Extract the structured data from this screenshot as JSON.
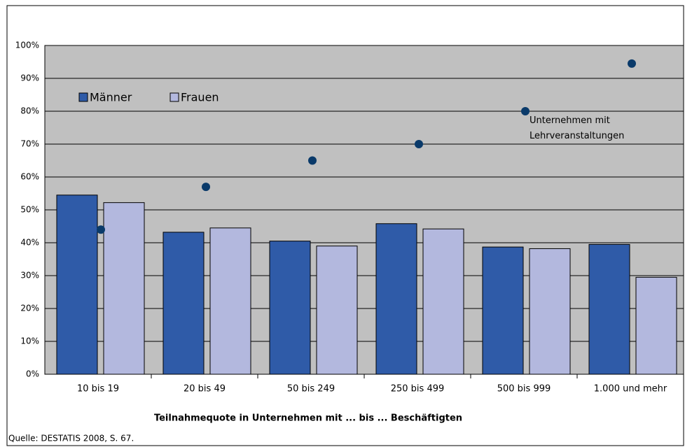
{
  "chart_data": {
    "type": "bar",
    "x_label": "Teilnahmequote in Unternehmen mit ... bis ... Beschäftigten",
    "source": "Quelle: DESTATIS 2008, S. 67.",
    "categories": [
      "10 bis 19",
      "20 bis 49",
      "50 bis 249",
      "250 bis 499",
      "500 bis 999",
      "1.000 und mehr"
    ],
    "series": [
      {
        "name": "Männer",
        "color": "#2f5ba8",
        "values": [
          54.5,
          43.2,
          40.5,
          45.8,
          38.7,
          39.5
        ]
      },
      {
        "name": "Frauen",
        "color": "#b3b8de",
        "values": [
          52.2,
          44.5,
          39,
          44.2,
          38.2,
          29.5
        ]
      },
      {
        "name": "Unternehmen mit Lehrveranstaltungen",
        "type": "scatter",
        "color": "#0a3a6a",
        "values": [
          44,
          57,
          65,
          70,
          80,
          94.5
        ]
      }
    ],
    "ylim": [
      0,
      100
    ],
    "yticks": [
      {
        "value": 0,
        "label": "0%"
      },
      {
        "value": 10,
        "label": "10%"
      },
      {
        "value": 20,
        "label": "20%"
      },
      {
        "value": 30,
        "label": "30%"
      },
      {
        "value": 40,
        "label": "40%"
      },
      {
        "value": 50,
        "label": "50%"
      },
      {
        "value": 60,
        "label": "60%"
      },
      {
        "value": 70,
        "label": "70%"
      },
      {
        "value": 80,
        "label": "80%"
      },
      {
        "value": 90,
        "label": "90%"
      },
      {
        "value": 100,
        "label": "100%"
      }
    ],
    "grid": true,
    "legend": "upper left",
    "background": "#c0c0c0"
  }
}
